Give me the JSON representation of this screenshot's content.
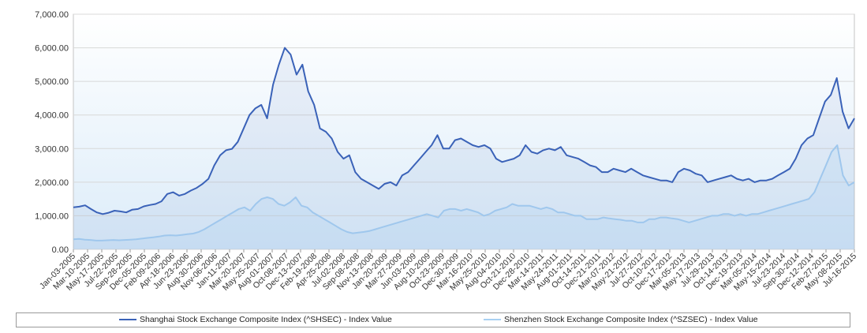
{
  "chart_data": {
    "type": "area",
    "y_ticks": [
      "0.00",
      "1,000.00",
      "2,000.00",
      "3,000.00",
      "4,000.00",
      "5,000.00",
      "6,000.00",
      "7,000.00"
    ],
    "ylim": [
      0,
      7000
    ],
    "x_ticks": [
      "Jan-03-2005",
      "Mar-10-2005",
      "May-17-2005",
      "Jul-22-2005",
      "Sep-28-2005",
      "Dec-05-2005",
      "Feb-09-2006",
      "Apr-18-2006",
      "Jun-23-2006",
      "Aug-30-2006",
      "Nov-06-2006",
      "Jan-11-2007",
      "Mar-20-2007",
      "May-25-2007",
      "Aug-01-2007",
      "Oct-08-2007",
      "Dec-13-2007",
      "Feb-19-2008",
      "Apr-25-2008",
      "Jul-02-2008",
      "Sep-08-2008",
      "Nov-13-2008",
      "Jan-20-2009",
      "Mar-27-2009",
      "Jun-03-2009",
      "Aug-10-2009",
      "Oct-23-2009",
      "Dec-30-2009",
      "Mar-16-2010",
      "May-25-2010",
      "Aug-04-2010",
      "Oct-21-2010",
      "Dec-28-2010",
      "Mar-14-2011",
      "May-24-2011",
      "Aug-01-2011",
      "Oct-14-2011",
      "Dec-21-2011",
      "Mar-07-2012",
      "May-21-2012",
      "Jul-27-2012",
      "Oct-10-2012",
      "Dec-17-2012",
      "Mar-05-2013",
      "May-17-2013",
      "Jul-29-2013",
      "Oct-14-2013",
      "Dec-19-2013",
      "Mar-05-2014",
      "May-15-2014",
      "Jul-23-2014",
      "Sep-30-2014",
      "Dec-12-2014",
      "Feb-27-2015",
      "May-08-2015",
      "Jul-16-2015"
    ],
    "grid": true,
    "legend_position": "bottom",
    "series": [
      {
        "name": "Shanghai Stock Exchange Composite Index (^SHSEC) - Index Value",
        "color": "#3a62b8",
        "values": [
          1250,
          1270,
          1310,
          1200,
          1100,
          1050,
          1090,
          1150,
          1130,
          1100,
          1180,
          1200,
          1280,
          1320,
          1350,
          1430,
          1650,
          1700,
          1600,
          1650,
          1750,
          1830,
          1950,
          2100,
          2500,
          2800,
          2950,
          2990,
          3200,
          3600,
          4000,
          4200,
          4300,
          3900,
          4900,
          5500,
          6000,
          5800,
          5200,
          5500,
          4700,
          4300,
          3600,
          3500,
          3300,
          2900,
          2700,
          2800,
          2300,
          2100,
          2000,
          1900,
          1800,
          1950,
          2000,
          1900,
          2200,
          2300,
          2500,
          2700,
          2900,
          3100,
          3400,
          3000,
          3000,
          3250,
          3300,
          3200,
          3100,
          3050,
          3100,
          3000,
          2700,
          2600,
          2650,
          2700,
          2800,
          3100,
          2900,
          2850,
          2950,
          3000,
          2950,
          3050,
          2800,
          2750,
          2700,
          2600,
          2500,
          2450,
          2300,
          2300,
          2400,
          2350,
          2300,
          2400,
          2300,
          2200,
          2150,
          2100,
          2050,
          2050,
          2000,
          2300,
          2400,
          2350,
          2250,
          2200,
          2000,
          2050,
          2100,
          2150,
          2200,
          2100,
          2050,
          2100,
          2000,
          2050,
          2050,
          2100,
          2200,
          2300,
          2400,
          2700,
          3100,
          3300,
          3400,
          3900,
          4400,
          4600,
          5100,
          4100,
          3600,
          3900
        ]
      },
      {
        "name": "Shenzhen Stock Exchange Composite Index (^SZSEC) - Index Value",
        "color": "#a8d0f2",
        "values": [
          300,
          310,
          290,
          280,
          260,
          260,
          270,
          280,
          270,
          280,
          290,
          300,
          320,
          340,
          360,
          380,
          410,
          420,
          410,
          430,
          450,
          470,
          520,
          600,
          700,
          800,
          900,
          1000,
          1100,
          1200,
          1250,
          1150,
          1350,
          1500,
          1550,
          1500,
          1350,
          1300,
          1400,
          1550,
          1300,
          1250,
          1100,
          1000,
          900,
          800,
          700,
          600,
          520,
          480,
          500,
          520,
          550,
          600,
          650,
          700,
          750,
          800,
          850,
          900,
          950,
          1000,
          1050,
          1000,
          950,
          1150,
          1200,
          1200,
          1150,
          1200,
          1150,
          1100,
          1000,
          1050,
          1150,
          1200,
          1250,
          1350,
          1300,
          1300,
          1300,
          1250,
          1200,
          1250,
          1200,
          1100,
          1100,
          1050,
          1000,
          1000,
          900,
          900,
          900,
          950,
          920,
          900,
          880,
          850,
          850,
          800,
          800,
          900,
          900,
          950,
          950,
          920,
          900,
          850,
          800,
          850,
          900,
          950,
          1000,
          1000,
          1050,
          1050,
          1000,
          1050,
          1000,
          1050,
          1050,
          1100,
          1150,
          1200,
          1250,
          1300,
          1350,
          1400,
          1450,
          1500,
          1700,
          2100,
          2500,
          2900,
          3100,
          2200,
          1900,
          2000
        ]
      }
    ]
  }
}
